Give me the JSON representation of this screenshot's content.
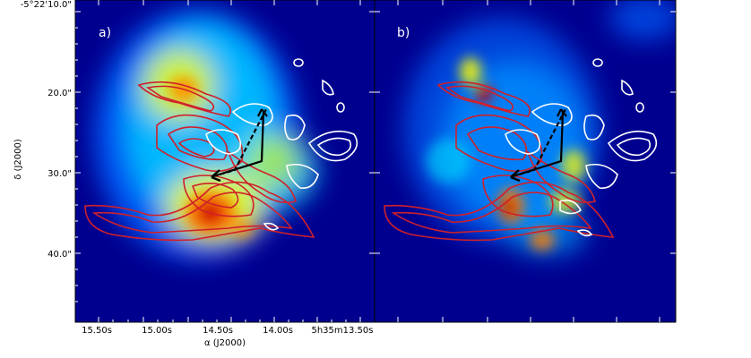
{
  "figure": {
    "panels": [
      {
        "label": "a)"
      },
      {
        "label": "b)"
      }
    ],
    "y_axis": {
      "title": "δ (J2000)",
      "top_label": "-5°22'10.0\"",
      "tick_labels": [
        "20.0\"",
        "30.0\"",
        "40.0\""
      ]
    },
    "x_axis": {
      "title": "α (J2000)",
      "tick_labels": [
        "15.50s",
        "15.00s",
        "14.50s",
        "14.00s",
        "5h35m13.50s"
      ]
    },
    "colors": {
      "background": "#00008f",
      "red_contour": "#d0202a",
      "white_contour": "#ffffff",
      "arrow": "#000000"
    },
    "colormap": "jet"
  }
}
